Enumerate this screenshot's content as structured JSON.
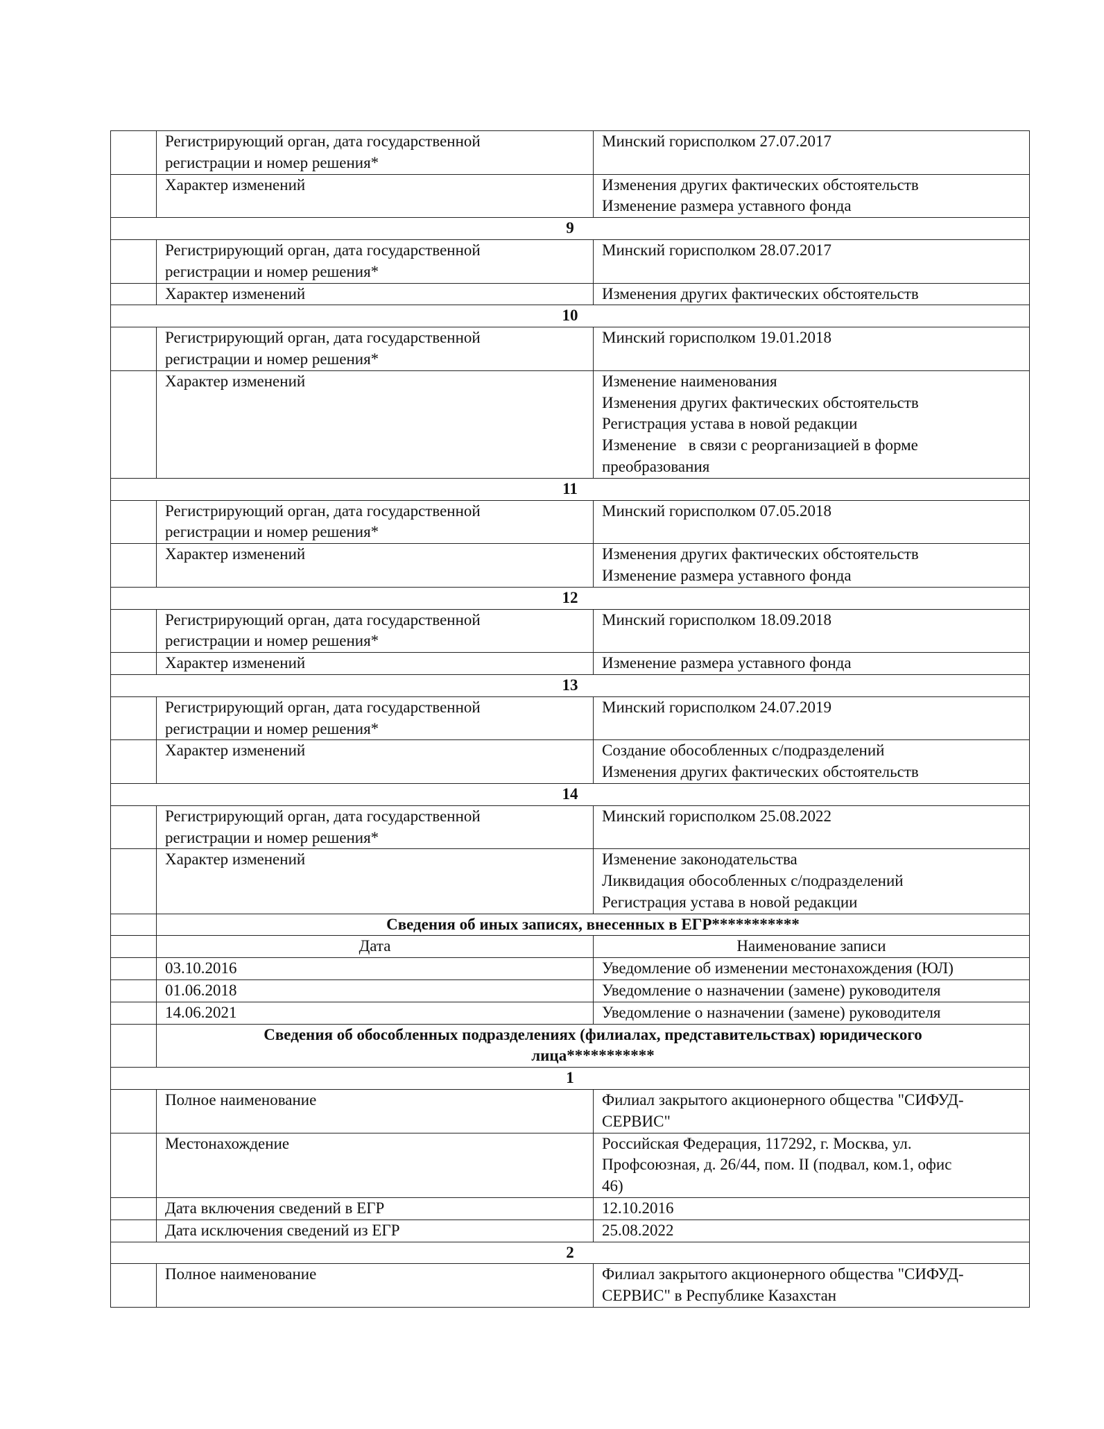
{
  "rows": [
    {
      "type": "kv",
      "label": [
        "Регистрирующий орган, дата государственной",
        "регистрации и номер решения*"
      ],
      "value": [
        "Минский горисполком 27.07.2017"
      ]
    },
    {
      "type": "kv",
      "label": [
        "Характер изменений"
      ],
      "value": [
        "Изменения других фактических обстоятельств",
        "Изменение размера уставного фонда"
      ]
    },
    {
      "type": "num",
      "text": "9"
    },
    {
      "type": "kv",
      "label": [
        "Регистрирующий орган, дата государственной",
        "регистрации и номер решения*"
      ],
      "value": [
        "Минский горисполком 28.07.2017"
      ]
    },
    {
      "type": "kv",
      "label": [
        "Характер изменений"
      ],
      "value": [
        "Изменения других фактических обстоятельств"
      ]
    },
    {
      "type": "num",
      "text": "10"
    },
    {
      "type": "kv",
      "label": [
        "Регистрирующий орган, дата государственной",
        "регистрации и номер решения*"
      ],
      "value": [
        "Минский горисполком 19.01.2018"
      ]
    },
    {
      "type": "kv",
      "label": [
        "Характер изменений"
      ],
      "value": [
        "Изменение наименования",
        "Изменения других фактических обстоятельств",
        "Регистрация устава в новой редакции",
        "Изменение   в связи с реорганизацией в форме",
        "преобразования"
      ]
    },
    {
      "type": "num",
      "text": "11"
    },
    {
      "type": "kv",
      "label": [
        "Регистрирующий орган, дата государственной",
        "регистрации и номер решения*"
      ],
      "value": [
        "Минский горисполком 07.05.2018"
      ]
    },
    {
      "type": "kv",
      "label": [
        "Характер изменений"
      ],
      "value": [
        "Изменения других фактических обстоятельств",
        "Изменение размера уставного фонда"
      ]
    },
    {
      "type": "num",
      "text": "12"
    },
    {
      "type": "kv",
      "label": [
        "Регистрирующий орган, дата государственной",
        "регистрации и номер решения*"
      ],
      "value": [
        "Минский горисполком 18.09.2018"
      ]
    },
    {
      "type": "kv",
      "label": [
        "Характер изменений"
      ],
      "value": [
        "Изменение размера уставного фонда"
      ]
    },
    {
      "type": "num",
      "text": "13"
    },
    {
      "type": "kv",
      "label": [
        "Регистрирующий орган, дата государственной",
        "регистрации и номер решения*"
      ],
      "value": [
        "Минский горисполком 24.07.2019"
      ]
    },
    {
      "type": "kv",
      "label": [
        "Характер изменений"
      ],
      "value": [
        "Создание обособленных с/подразделений",
        "Изменения других фактических обстоятельств"
      ]
    },
    {
      "type": "num",
      "text": "14"
    },
    {
      "type": "kv",
      "label": [
        "Регистрирующий орган, дата государственной",
        "регистрации и номер решения*"
      ],
      "value": [
        "Минский горисполком 25.08.2022"
      ]
    },
    {
      "type": "kv",
      "label": [
        "Характер изменений"
      ],
      "value": [
        "Изменение законодательства",
        "Ликвидация обособленных с/подразделений",
        "Регистрация устава в новой редакции"
      ]
    },
    {
      "type": "section",
      "text": [
        "Сведения об иных записях, внесенных в ЕГР***********"
      ]
    },
    {
      "type": "header",
      "label": [
        "Дата"
      ],
      "value": [
        "Наименование записи"
      ]
    },
    {
      "type": "kv",
      "label": [
        "03.10.2016"
      ],
      "value": [
        "Уведомление об изменении местонахождения (ЮЛ)"
      ]
    },
    {
      "type": "kv",
      "label": [
        "01.06.2018"
      ],
      "value": [
        "Уведомление о назначении (замене) руководителя"
      ]
    },
    {
      "type": "kv",
      "label": [
        "14.06.2021"
      ],
      "value": [
        "Уведомление о назначении (замене) руководителя"
      ]
    },
    {
      "type": "section",
      "text": [
        "Сведения об обособленных подразделениях (филиалах, представительствах) юридического",
        "лица***********"
      ]
    },
    {
      "type": "num",
      "text": "1"
    },
    {
      "type": "kv",
      "label": [
        "Полное наименование"
      ],
      "value": [
        "Филиал закрытого акционерного общества \"СИФУД-",
        "СЕРВИС\""
      ]
    },
    {
      "type": "kv",
      "label": [
        "Местонахождение"
      ],
      "value": [
        "Российская Федерация, 117292, г. Москва, ул.",
        "Профсоюзная, д. 26/44, пом. II (подвал, ком.1, офис",
        "46)"
      ]
    },
    {
      "type": "kv",
      "label": [
        "Дата включения сведений в ЕГР"
      ],
      "value": [
        "12.10.2016"
      ]
    },
    {
      "type": "kv",
      "label": [
        "Дата исключения сведений из ЕГР"
      ],
      "value": [
        "25.08.2022"
      ]
    },
    {
      "type": "num",
      "text": "2"
    },
    {
      "type": "kv",
      "label": [
        "Полное наименование"
      ],
      "value": [
        "Филиал закрытого акционерного общества \"СИФУД-",
        "СЕРВИС\" в Республике Казахстан"
      ]
    }
  ]
}
